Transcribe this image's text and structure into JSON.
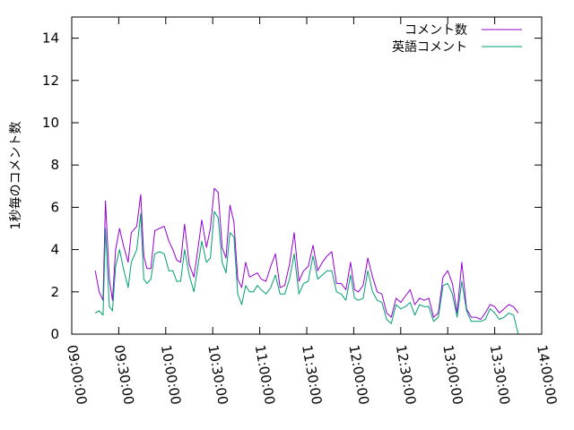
{
  "chart_data": {
    "type": "line",
    "ylabel": "1秒毎のコメント数",
    "ylim": [
      0,
      15
    ],
    "yticks": [
      0,
      2,
      4,
      6,
      8,
      10,
      12,
      14
    ],
    "xlim": [
      "09:00:00",
      "14:00:00"
    ],
    "xticks": [
      "09:00:00",
      "09:30:00",
      "10:00:00",
      "10:30:00",
      "11:00:00",
      "11:30:00",
      "12:00:00",
      "12:30:00",
      "13:00:00",
      "13:30:00",
      "14:00:00"
    ],
    "legend_position": "top-right",
    "grid": false,
    "series": [
      {
        "name": "コメント数",
        "color": "#9400d3",
        "x": [
          "09:15:00",
          "09:17:30",
          "09:20:00",
          "09:21:30",
          "09:24:00",
          "09:26:00",
          "09:28:00",
          "09:30:30",
          "09:33:00",
          "09:36:00",
          "09:38:00",
          "09:41:30",
          "09:44:00",
          "09:46:00",
          "09:48:00",
          "09:50:30",
          "09:53:00",
          "09:56:00",
          "09:59:00",
          "10:02:00",
          "10:04:30",
          "10:07:00",
          "10:09:30",
          "10:12:00",
          "10:15:00",
          "10:18:00",
          "10:20:30",
          "10:23:00",
          "10:26:00",
          "10:28:30",
          "10:31:00",
          "10:33:30",
          "10:36:00",
          "10:38:30",
          "10:41:00",
          "10:43:30",
          "10:46:00",
          "10:48:30",
          "10:51:00",
          "10:53:30",
          "10:56:00",
          "10:58:30",
          "11:01:00",
          "11:04:00",
          "11:07:00",
          "11:10:00",
          "11:13:00",
          "11:16:00",
          "11:19:00",
          "11:22:00",
          "11:25:00",
          "11:28:00",
          "11:31:00",
          "11:34:00",
          "11:37:00",
          "11:40:00",
          "11:43:00",
          "11:46:00",
          "11:49:00",
          "11:52:00",
          "11:55:00",
          "11:58:00",
          "12:00:30",
          "12:03:00",
          "12:06:00",
          "12:09:00",
          "12:12:00",
          "12:15:00",
          "12:18:00",
          "12:21:00",
          "12:24:00",
          "12:27:00",
          "12:30:00",
          "12:33:00",
          "12:36:00",
          "12:39:00",
          "12:42:00",
          "12:45:00",
          "12:48:00",
          "12:51:00",
          "12:54:00",
          "12:57:00",
          "13:00:00",
          "13:03:00",
          "13:06:00",
          "13:09:00",
          "13:12:00",
          "13:15:00",
          "13:18:00",
          "13:21:00",
          "13:24:00",
          "13:27:00",
          "13:30:00",
          "13:33:00",
          "13:36:00",
          "13:39:00",
          "13:42:00",
          "13:45:00"
        ],
        "values": [
          3.0,
          2.0,
          1.6,
          6.3,
          2.6,
          1.6,
          4.0,
          5.0,
          4.2,
          3.4,
          4.8,
          5.1,
          6.6,
          3.7,
          3.1,
          3.1,
          4.9,
          5.0,
          5.1,
          4.4,
          4.0,
          3.5,
          3.4,
          5.2,
          3.3,
          2.7,
          4.0,
          5.4,
          4.1,
          5.0,
          6.9,
          6.7,
          4.1,
          3.6,
          6.1,
          5.3,
          2.6,
          2.2,
          3.4,
          2.7,
          2.8,
          2.9,
          2.6,
          2.5,
          3.2,
          3.8,
          2.2,
          2.3,
          3.3,
          4.8,
          2.5,
          3.0,
          3.2,
          4.2,
          3.0,
          3.4,
          3.7,
          3.9,
          2.4,
          2.4,
          2.1,
          3.4,
          2.1,
          2.0,
          2.3,
          3.6,
          2.7,
          2.0,
          1.9,
          1.0,
          0.8,
          1.7,
          1.5,
          1.8,
          2.1,
          1.4,
          1.7,
          1.6,
          1.7,
          0.8,
          1.0,
          2.7,
          3.0,
          2.4,
          1.0,
          3.4,
          1.2,
          0.8,
          0.8,
          0.7,
          1.0,
          1.4,
          1.3,
          1.0,
          1.2,
          1.4,
          1.3,
          1.0
        ]
      },
      {
        "name": "英語コメント",
        "color": "#009e73",
        "x": [
          "09:15:00",
          "09:17:30",
          "09:20:00",
          "09:21:30",
          "09:24:00",
          "09:26:00",
          "09:28:00",
          "09:30:30",
          "09:33:00",
          "09:36:00",
          "09:38:00",
          "09:41:30",
          "09:44:00",
          "09:46:00",
          "09:48:00",
          "09:50:30",
          "09:53:00",
          "09:56:00",
          "09:59:00",
          "10:02:00",
          "10:04:30",
          "10:07:00",
          "10:09:30",
          "10:12:00",
          "10:15:00",
          "10:18:00",
          "10:20:30",
          "10:23:00",
          "10:26:00",
          "10:28:30",
          "10:31:00",
          "10:33:30",
          "10:36:00",
          "10:38:30",
          "10:41:00",
          "10:43:30",
          "10:46:00",
          "10:48:30",
          "10:51:00",
          "10:53:30",
          "10:56:00",
          "10:58:30",
          "11:01:00",
          "11:04:00",
          "11:07:00",
          "11:10:00",
          "11:13:00",
          "11:16:00",
          "11:19:00",
          "11:22:00",
          "11:25:00",
          "11:28:00",
          "11:31:00",
          "11:34:00",
          "11:37:00",
          "11:40:00",
          "11:43:00",
          "11:46:00",
          "11:49:00",
          "11:52:00",
          "11:55:00",
          "11:58:00",
          "12:00:30",
          "12:03:00",
          "12:06:00",
          "12:09:00",
          "12:12:00",
          "12:15:00",
          "12:18:00",
          "12:21:00",
          "12:24:00",
          "12:27:00",
          "12:30:00",
          "12:33:00",
          "12:36:00",
          "12:39:00",
          "12:42:00",
          "12:45:00",
          "12:48:00",
          "12:51:00",
          "12:54:00",
          "12:57:00",
          "13:00:00",
          "13:03:00",
          "13:06:00",
          "13:09:00",
          "13:12:00",
          "13:15:00",
          "13:18:00",
          "13:21:00",
          "13:24:00",
          "13:27:00",
          "13:30:00",
          "13:33:00",
          "13:36:00",
          "13:39:00",
          "13:42:00",
          "13:45:00"
        ],
        "values": [
          1.0,
          1.1,
          0.9,
          5.0,
          1.3,
          1.1,
          3.2,
          4.0,
          3.1,
          2.2,
          3.4,
          4.0,
          5.7,
          2.6,
          2.4,
          2.6,
          3.8,
          3.9,
          3.8,
          3.0,
          3.0,
          2.5,
          2.5,
          4.0,
          2.8,
          2.0,
          3.2,
          4.4,
          3.4,
          3.6,
          5.8,
          5.5,
          3.4,
          2.9,
          4.8,
          4.6,
          1.9,
          1.4,
          2.3,
          2.0,
          2.0,
          2.3,
          2.1,
          1.9,
          2.2,
          2.8,
          1.9,
          1.9,
          2.6,
          3.8,
          1.9,
          2.4,
          2.5,
          3.7,
          2.6,
          2.8,
          3.0,
          3.0,
          2.0,
          1.9,
          1.6,
          2.8,
          1.7,
          1.6,
          1.7,
          3.0,
          2.0,
          1.6,
          1.5,
          0.7,
          0.5,
          1.4,
          1.2,
          1.3,
          1.5,
          0.9,
          1.4,
          1.3,
          1.3,
          0.6,
          0.8,
          2.3,
          2.4,
          1.9,
          0.8,
          2.5,
          1.1,
          0.6,
          0.6,
          0.6,
          0.7,
          1.2,
          1.0,
          0.7,
          0.8,
          1.0,
          0.9,
          0.0
        ]
      }
    ]
  }
}
